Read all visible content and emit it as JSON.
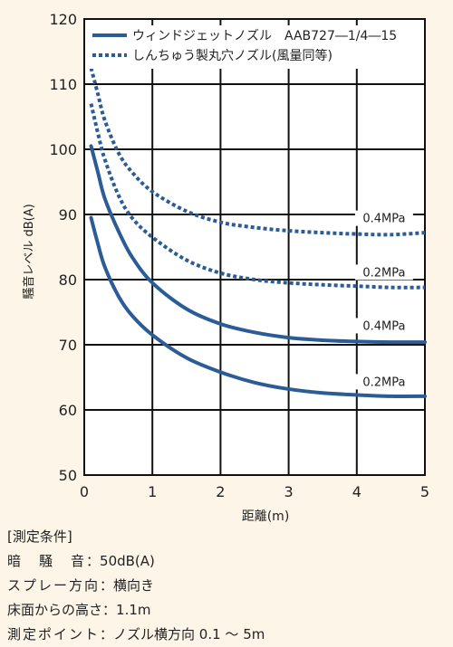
{
  "chart_data": {
    "type": "line",
    "xlabel": "距離(m)",
    "ylabel": "騒音レベル dB(A)",
    "xlim": [
      0,
      5
    ],
    "ylim": [
      50,
      120
    ],
    "xticks": [
      0,
      1,
      2,
      3,
      4,
      5
    ],
    "yticks": [
      50,
      60,
      70,
      80,
      90,
      100,
      110,
      120
    ],
    "grid": true,
    "legend_position": "top",
    "legend": [
      {
        "label": "ウィンドジェットノズル　AAB727―1/4―15",
        "style": "solid",
        "color": "#2b5c96"
      },
      {
        "label": "しんちゅう製丸穴ノズル(風量同等)",
        "style": "dotted",
        "color": "#2b5c96"
      }
    ],
    "series": [
      {
        "group": "ウィンドジェットノズル",
        "name": "0.4MPa",
        "style": "solid",
        "x": [
          0.1,
          0.2,
          0.3,
          0.5,
          0.7,
          1.0,
          1.5,
          2.0,
          2.5,
          3.0,
          3.5,
          4.0,
          4.5,
          5.0
        ],
        "y": [
          100.5,
          96.5,
          92.5,
          87.5,
          83.5,
          79.5,
          75.5,
          73.2,
          71.9,
          71.1,
          70.7,
          70.5,
          70.4,
          70.4
        ]
      },
      {
        "group": "ウィンドジェットノズル",
        "name": "0.2MPa",
        "style": "solid",
        "x": [
          0.1,
          0.2,
          0.3,
          0.5,
          0.7,
          1.0,
          1.5,
          2.0,
          2.5,
          3.0,
          3.5,
          4.0,
          4.5,
          5.0
        ],
        "y": [
          89.5,
          85.5,
          82.0,
          77.5,
          74.5,
          71.5,
          68.0,
          65.8,
          64.2,
          63.2,
          62.6,
          62.3,
          62.1,
          62.1
        ]
      },
      {
        "group": "しんちゅう製丸穴ノズル",
        "name": "0.4MPa",
        "style": "dotted",
        "x": [
          0.1,
          0.2,
          0.3,
          0.5,
          0.7,
          1.0,
          1.5,
          2.0,
          2.5,
          3.0,
          3.5,
          4.0,
          4.5,
          5.0
        ],
        "y": [
          112.5,
          108.5,
          104.5,
          99.5,
          96.5,
          93.5,
          90.5,
          88.8,
          88.0,
          87.5,
          87.2,
          87.0,
          86.9,
          87.2
        ]
      },
      {
        "group": "しんちゅう製丸穴ノズル",
        "name": "0.2MPa",
        "style": "dotted",
        "x": [
          0.1,
          0.2,
          0.3,
          0.5,
          0.7,
          1.0,
          1.5,
          2.0,
          2.5,
          3.0,
          3.5,
          4.0,
          4.5,
          5.0
        ],
        "y": [
          107.0,
          102.5,
          98.5,
          93.0,
          89.5,
          86.5,
          83.0,
          81.0,
          80.0,
          79.5,
          79.2,
          79.0,
          78.8,
          78.8
        ]
      }
    ],
    "annotations": [
      {
        "text": "0.4MPa",
        "x": 4.4,
        "y": 88.8
      },
      {
        "text": "0.2MPa",
        "x": 4.4,
        "y": 80.5
      },
      {
        "text": "0.4MPa",
        "x": 4.4,
        "y": 72.3
      },
      {
        "text": "0.2MPa",
        "x": 4.4,
        "y": 63.7
      }
    ]
  },
  "conditions": {
    "title": "[測定条件]",
    "rows": [
      {
        "label": "暗騒音",
        "sep": "：",
        "value": "50dB(A)"
      },
      {
        "label": "スプレー方向",
        "sep": "：",
        "value": "横向き"
      },
      {
        "label": "床面からの高さ",
        "sep": "：",
        "value": "1.1m"
      },
      {
        "label": "測定ポイント",
        "sep": "：",
        "value": "ノズル横方向 0.1 ～ 5m"
      }
    ]
  }
}
